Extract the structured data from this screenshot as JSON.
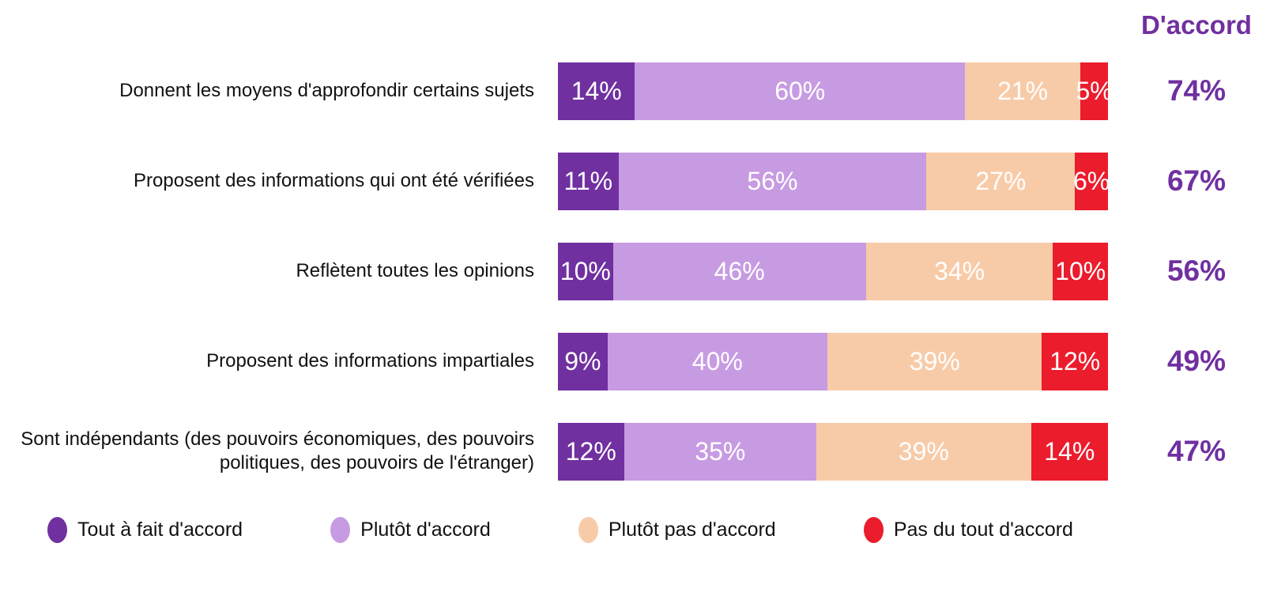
{
  "chart_data": {
    "type": "bar",
    "subtype": "horizontal-stacked-100",
    "unit": "%",
    "title": "",
    "agree_header": "D'accord",
    "agree_color": "#7030A0",
    "label_color": "#111111",
    "segment_label_color": "#FFFFFF",
    "legend_position": "bottom",
    "axis_range": [
      0,
      100
    ],
    "grid": false,
    "categories": [
      "Donnent les moyens d'approfondir certains sujets",
      "Proposent des informations qui ont été vérifiées",
      "Reflètent toutes les opinions",
      "Proposent des informations impartiales",
      "Sont indépendants (des pouvoirs économiques, des pouvoirs politiques, des pouvoirs de l'étranger)"
    ],
    "series": [
      {
        "name": "Tout à fait d'accord",
        "color": "#7030A0",
        "values": [
          14,
          11,
          10,
          9,
          12
        ]
      },
      {
        "name": "Plutôt d'accord",
        "color": "#C79BE2",
        "values": [
          60,
          56,
          46,
          40,
          35
        ]
      },
      {
        "name": "Plutôt pas d'accord",
        "color": "#F8CBA8",
        "values": [
          21,
          27,
          34,
          39,
          39
        ]
      },
      {
        "name": "Pas du tout d'accord",
        "color": "#EB1C2C",
        "values": [
          5,
          6,
          10,
          12,
          14
        ]
      }
    ],
    "agree_totals": {
      "label": "D'accord",
      "values": [
        "74%",
        "67%",
        "56%",
        "49%",
        "47%"
      ]
    }
  }
}
